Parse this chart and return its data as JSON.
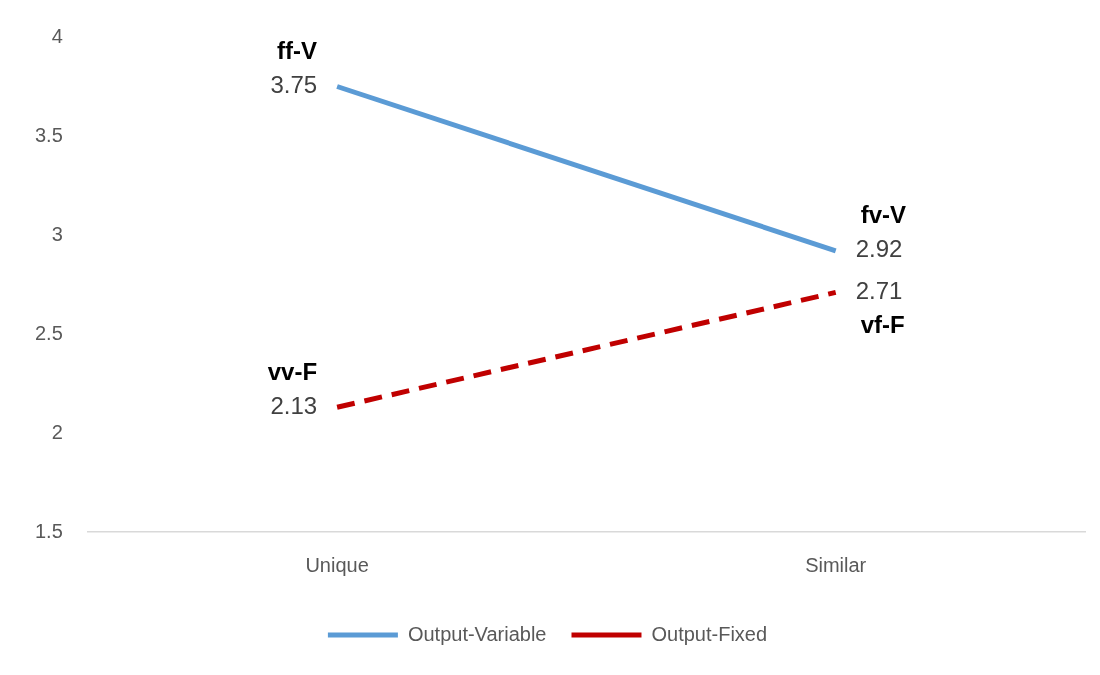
{
  "chart_data": {
    "type": "line",
    "categories": [
      "Unique",
      "Similar"
    ],
    "series": [
      {
        "name": "Output-Variable",
        "color": "#5b9bd5",
        "values": [
          3.75,
          2.92
        ],
        "line_style": "solid"
      },
      {
        "name": "Output-Fixed",
        "color": "#c00000",
        "values": [
          2.13,
          2.71
        ],
        "line_style": "dashed"
      }
    ],
    "ylim": [
      1.5,
      4
    ],
    "yticks": [
      1.5,
      2,
      2.5,
      3,
      3.5,
      4
    ],
    "grid": false,
    "legend": "bottom",
    "marker": "none",
    "data_labels": true,
    "annotations": [
      {
        "text": "ff-V",
        "x": "Unique",
        "y": 3.75
      },
      {
        "text": "fv-V",
        "x": "Similar",
        "y": 2.92
      },
      {
        "text": "vv-F",
        "x": "Unique",
        "y": 2.13
      },
      {
        "text": "vf-F",
        "x": "Similar",
        "y": 2.71
      }
    ]
  }
}
